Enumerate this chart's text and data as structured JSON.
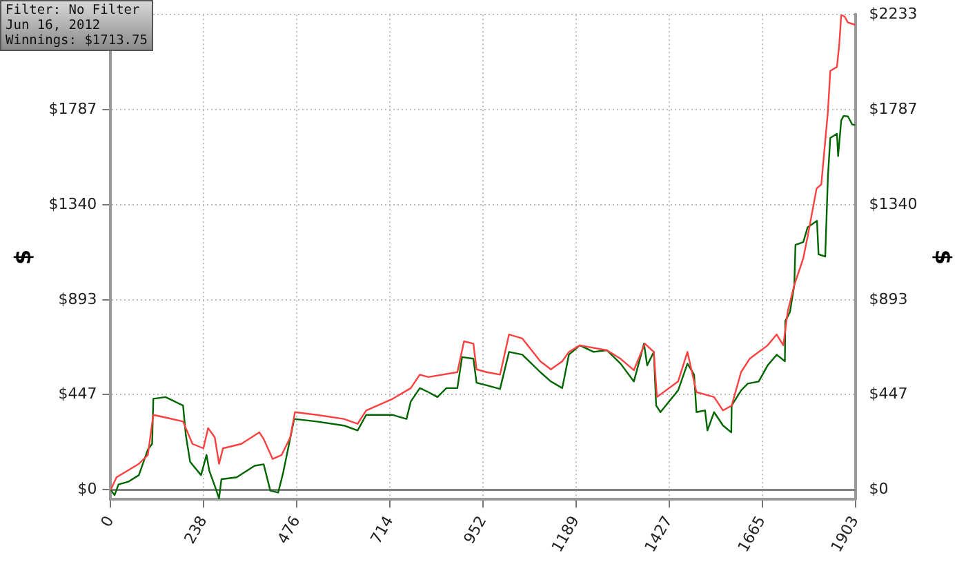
{
  "chart_data": {
    "type": "line",
    "ylabel": "$",
    "y2label": "$",
    "annotations": [
      "Filter: No Filter",
      "Jun 16, 2012",
      "Winnings: $1713.75"
    ],
    "xlim": [
      0,
      1903
    ],
    "xticks": [
      0,
      238,
      476,
      714,
      952,
      1189,
      1427,
      1665,
      1903
    ],
    "ylim": [
      -45,
      2233
    ],
    "yticks": [
      {
        "value": 0,
        "label": "$0"
      },
      {
        "value": 447,
        "label": "$447"
      },
      {
        "value": 893,
        "label": "$893"
      },
      {
        "value": 1340,
        "label": "$1340"
      },
      {
        "value": 1787,
        "label": "$1787"
      },
      {
        "value": 2233,
        "label": null
      }
    ],
    "y2lim": [
      -45,
      2233
    ],
    "y2ticks": [
      {
        "value": 0,
        "label": "$0"
      },
      {
        "value": 447,
        "label": "$447"
      },
      {
        "value": 893,
        "label": "$893"
      },
      {
        "value": 1340,
        "label": "$1340"
      },
      {
        "value": 1787,
        "label": "$1787"
      },
      {
        "value": 2233,
        "label": "$2233"
      }
    ],
    "grid": true,
    "legend": false,
    "marker": "none",
    "line_style": "solid",
    "ref_lines": [
      {
        "axis": "y",
        "value": 0,
        "color": "#808080"
      }
    ],
    "series": [
      {
        "color": "#ff4040",
        "x": [
          0,
          15,
          72,
          95,
          109,
          140,
          185,
          209,
          237,
          249,
          266,
          277,
          287,
          334,
          380,
          391,
          414,
          437,
          459,
          471,
          527,
          596,
          631,
          653,
          721,
          767,
          790,
          812,
          886,
          903,
          927,
          935,
          961,
          995,
          1018,
          1052,
          1098,
          1125,
          1154,
          1171,
          1199,
          1268,
          1303,
          1337,
          1365,
          1388,
          1396,
          1450,
          1474,
          1497,
          1542,
          1565,
          1587,
          1611,
          1633,
          1679,
          1702,
          1719,
          1730,
          1747,
          1770,
          1781,
          1804,
          1816,
          1833,
          1839,
          1856,
          1862,
          1867,
          1876,
          1884,
          1903
        ],
        "values": [
          0,
          59,
          122,
          164,
          352,
          340,
          321,
          216,
          195,
          290,
          247,
          122,
          195,
          216,
          270,
          239,
          145,
          164,
          247,
          365,
          352,
          333,
          310,
          373,
          428,
          478,
          541,
          530,
          553,
          698,
          687,
          566,
          553,
          541,
          730,
          711,
          604,
          566,
          604,
          648,
          679,
          656,
          616,
          562,
          687,
          648,
          436,
          509,
          648,
          459,
          436,
          373,
          396,
          553,
          616,
          679,
          730,
          679,
          836,
          962,
          1088,
          1189,
          1416,
          1435,
          1780,
          1969,
          1987,
          2095,
          2233,
          2223,
          2196,
          2185
        ]
      },
      {
        "color": "#006600",
        "x": [
          0,
          10,
          20,
          45,
          72,
          95,
          106,
          109,
          140,
          185,
          192,
          203,
          231,
          245,
          252,
          266,
          277,
          283,
          322,
          368,
          391,
          408,
          428,
          441,
          469,
          527,
          596,
          631,
          653,
          721,
          756,
          767,
          790,
          812,
          835,
          858,
          886,
          898,
          927,
          935,
          961,
          995,
          1018,
          1052,
          1098,
          1125,
          1154,
          1171,
          1199,
          1234,
          1268,
          1303,
          1337,
          1363,
          1371,
          1388,
          1394,
          1405,
          1450,
          1474,
          1491,
          1497,
          1519,
          1525,
          1542,
          1565,
          1586,
          1587,
          1611,
          1628,
          1656,
          1679,
          1702,
          1723,
          1724,
          1736,
          1747,
          1750,
          1770,
          1781,
          1805,
          1809,
          1826,
          1833,
          1839,
          1856,
          1859,
          1867,
          1873,
          1884,
          1895,
          1903
        ],
        "values": [
          0,
          -25,
          25,
          38,
          69,
          189,
          216,
          428,
          436,
          396,
          258,
          132,
          69,
          164,
          90,
          19,
          -40,
          50,
          59,
          113,
          120,
          -4,
          -13,
          82,
          333,
          321,
          302,
          279,
          352,
          352,
          333,
          415,
          478,
          459,
          436,
          478,
          478,
          624,
          616,
          503,
          491,
          474,
          648,
          635,
          553,
          509,
          478,
          635,
          679,
          648,
          656,
          593,
          509,
          687,
          585,
          648,
          396,
          365,
          467,
          593,
          541,
          365,
          373,
          279,
          365,
          302,
          270,
          396,
          467,
          499,
          509,
          585,
          635,
          604,
          793,
          836,
          962,
          1151,
          1164,
          1233,
          1264,
          1107,
          1096,
          1474,
          1654,
          1673,
          1568,
          1736,
          1757,
          1755,
          1717,
          1714
        ]
      }
    ]
  }
}
